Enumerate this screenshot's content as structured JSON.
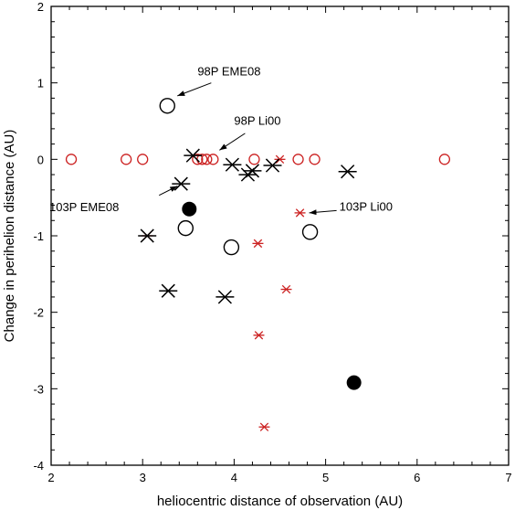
{
  "chart_data": {
    "type": "scatter",
    "title": "",
    "xlabel": "heliocentric distance of observation (AU)",
    "ylabel": "Change in perihelion distance (AU)",
    "xlim": [
      2,
      7
    ],
    "ylim": [
      -4,
      2
    ],
    "xticks": [
      2,
      3,
      4,
      5,
      6,
      7
    ],
    "yticks": [
      -4,
      -3,
      -2,
      -1,
      0,
      1,
      2
    ],
    "grid": false,
    "legend": "none",
    "series": [
      {
        "marker": "open-circle-red",
        "color": "#cc2222",
        "points": [
          [
            2.22,
            0.0
          ],
          [
            2.82,
            0.0
          ],
          [
            3.0,
            0.0
          ],
          [
            3.6,
            0.0
          ],
          [
            3.65,
            0.0
          ],
          [
            3.7,
            0.0
          ],
          [
            3.77,
            0.0
          ],
          [
            4.22,
            0.0
          ],
          [
            4.7,
            0.0
          ],
          [
            4.88,
            0.0
          ],
          [
            6.3,
            0.0
          ]
        ]
      },
      {
        "marker": "asterisk-red",
        "color": "#cc2222",
        "points": [
          [
            3.05,
            -1.0
          ],
          [
            4.26,
            -1.1
          ],
          [
            4.5,
            0.0
          ],
          [
            4.57,
            -1.7
          ],
          [
            4.72,
            -0.7
          ],
          [
            4.27,
            -2.3
          ],
          [
            4.33,
            -3.5
          ]
        ]
      },
      {
        "marker": "open-circle-black",
        "color": "#000000",
        "points": [
          [
            3.27,
            0.7
          ],
          [
            3.47,
            -0.9
          ],
          [
            3.97,
            -1.15
          ],
          [
            4.83,
            -0.95
          ]
        ]
      },
      {
        "marker": "filled-circle-black",
        "color": "#000000",
        "points": [
          [
            3.51,
            -0.65
          ],
          [
            5.31,
            -2.92
          ]
        ]
      },
      {
        "marker": "asterisk-black",
        "color": "#000000",
        "points": [
          [
            3.55,
            0.05
          ],
          [
            3.42,
            -0.32
          ],
          [
            3.05,
            -1.0
          ],
          [
            3.28,
            -1.72
          ],
          [
            3.9,
            -1.8
          ],
          [
            3.98,
            -0.07
          ],
          [
            4.15,
            -0.2
          ],
          [
            4.2,
            -0.15
          ],
          [
            4.42,
            -0.08
          ],
          [
            5.24,
            -0.16
          ]
        ]
      }
    ],
    "annotations": [
      {
        "text": "98P EME08",
        "text_at": [
          3.6,
          1.1
        ],
        "arrow_from": [
          3.75,
          1.0
        ],
        "arrow_to": [
          3.38,
          0.83
        ]
      },
      {
        "text": "98P Li00",
        "text_at": [
          4.0,
          0.45
        ],
        "arrow_from": [
          4.12,
          0.34
        ],
        "arrow_to": [
          3.84,
          0.12
        ]
      },
      {
        "text": "103P EME08",
        "text_at": [
          1.98,
          -0.68
        ],
        "arrow_from": [
          3.18,
          -0.47
        ],
        "arrow_to": [
          3.38,
          -0.35
        ]
      },
      {
        "text": "103P Li00",
        "text_at": [
          5.15,
          -0.67
        ],
        "arrow_from": [
          5.12,
          -0.67
        ],
        "arrow_to": [
          4.82,
          -0.7
        ]
      }
    ]
  }
}
